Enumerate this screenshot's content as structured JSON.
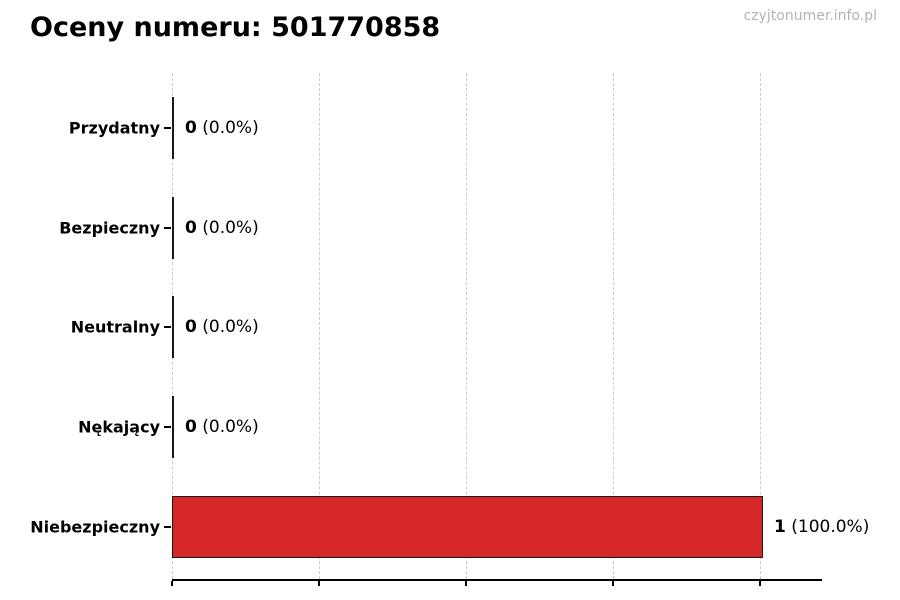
{
  "title": "Oceny numeru: 501770858",
  "watermark": "czyjtonumer.info.pl",
  "colors": {
    "bar_fill": "#d62728",
    "bar_edge": "#1a1a1a",
    "gridline": "#cccccc",
    "axis": "#000000",
    "title_text": "#000000",
    "watermark_text": "#b3b3b3"
  },
  "chart_data": {
    "type": "bar",
    "orientation": "horizontal",
    "title": "Oceny numeru: 501770858",
    "categories": [
      "Przydatny",
      "Bezpieczny",
      "Neutralny",
      "Nękający",
      "Niebezpieczny"
    ],
    "values": [
      0,
      0,
      0,
      0,
      1
    ],
    "value_labels": [
      "0 (0.0%)",
      "0 (0.0%)",
      "0 (0.0%)",
      "0 (0.0%)",
      "1 (100.0%)"
    ],
    "percentages": [
      0.0,
      0.0,
      0.0,
      0.0,
      100.0
    ],
    "xlabel": "",
    "ylabel": "",
    "xlim": [
      0,
      1.1
    ],
    "grid": true,
    "gridline_values": [
      0,
      0.25,
      0.5,
      0.75,
      1.0
    ],
    "legend": "none"
  },
  "rows": [
    {
      "label": "Przydatny",
      "count": "0",
      "percent": "(0.0%)"
    },
    {
      "label": "Bezpieczny",
      "count": "0",
      "percent": "(0.0%)"
    },
    {
      "label": "Neutralny",
      "count": "0",
      "percent": "(0.0%)"
    },
    {
      "label": "Nękający",
      "count": "0",
      "percent": "(0.0%)"
    },
    {
      "label": "Niebezpieczny",
      "count": "1",
      "percent": "(100.0%)"
    }
  ]
}
